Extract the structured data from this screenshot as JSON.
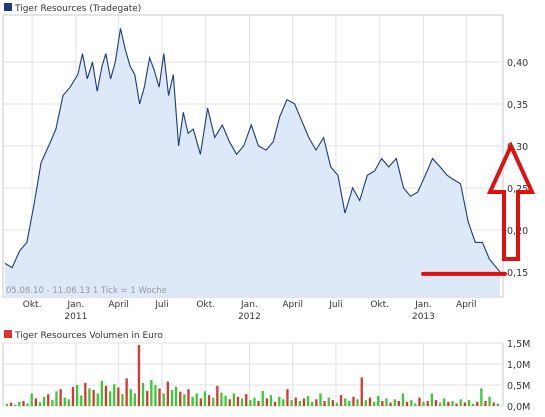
{
  "chart_data": [
    {
      "type": "area",
      "title": "Tiger Resources (Tradegate)",
      "subtitle": "05.08.10 - 11.06.13   1 Tick = 1 Woche",
      "xlabel": "",
      "ylabel": "",
      "ylim": [
        0.12,
        0.45
      ],
      "y_ticks": [
        0.15,
        0.2,
        0.25,
        0.3,
        0.35,
        0.4
      ],
      "y_tick_labels": [
        "0,15",
        "0,20",
        "0,25",
        "0,30",
        "0,35",
        "0,40"
      ],
      "x_ticks": [
        {
          "label": "Okt.",
          "year": ""
        },
        {
          "label": "Jan.",
          "year": "2011"
        },
        {
          "label": "April",
          "year": ""
        },
        {
          "label": "Juli",
          "year": ""
        },
        {
          "label": "Okt.",
          "year": ""
        },
        {
          "label": "Jan.",
          "year": "2012"
        },
        {
          "label": "April",
          "year": ""
        },
        {
          "label": "Juli",
          "year": ""
        },
        {
          "label": "Okt.",
          "year": ""
        },
        {
          "label": "Jan.",
          "year": "2013"
        },
        {
          "label": "April",
          "year": ""
        }
      ],
      "x_tick_dates": [
        "2010-10-01",
        "2011-01-01",
        "2011-04-01",
        "2011-07-01",
        "2011-10-01",
        "2012-01-01",
        "2012-04-01",
        "2012-07-01",
        "2012-10-01",
        "2013-01-01",
        "2013-04-01"
      ],
      "x_range": [
        "2010-08-05",
        "2013-06-11"
      ],
      "grid": true,
      "legend": "top-left",
      "series": [
        {
          "name": "Tiger Resources (Tradegate)",
          "color": "#1a3a7a",
          "fill": "#dde8f8",
          "x": [
            "2010-08-05",
            "2010-08-20",
            "2010-09-05",
            "2010-09-20",
            "2010-10-05",
            "2010-10-20",
            "2010-11-05",
            "2010-11-20",
            "2010-12-05",
            "2010-12-20",
            "2011-01-05",
            "2011-01-15",
            "2011-01-25",
            "2011-02-05",
            "2011-02-15",
            "2011-02-25",
            "2011-03-05",
            "2011-03-15",
            "2011-03-25",
            "2011-04-05",
            "2011-04-15",
            "2011-04-25",
            "2011-05-05",
            "2011-05-15",
            "2011-05-25",
            "2011-06-05",
            "2011-06-15",
            "2011-06-25",
            "2011-07-05",
            "2011-07-15",
            "2011-07-25",
            "2011-08-05",
            "2011-08-15",
            "2011-08-25",
            "2011-09-05",
            "2011-09-20",
            "2011-10-05",
            "2011-10-20",
            "2011-11-05",
            "2011-11-20",
            "2011-12-05",
            "2011-12-20",
            "2012-01-05",
            "2012-01-20",
            "2012-02-05",
            "2012-02-20",
            "2012-03-05",
            "2012-03-20",
            "2012-04-05",
            "2012-04-20",
            "2012-05-05",
            "2012-05-20",
            "2012-06-05",
            "2012-06-20",
            "2012-07-05",
            "2012-07-20",
            "2012-08-05",
            "2012-08-20",
            "2012-09-05",
            "2012-09-20",
            "2012-10-05",
            "2012-10-20",
            "2012-11-05",
            "2012-11-20",
            "2012-12-05",
            "2012-12-20",
            "2013-01-05",
            "2013-01-20",
            "2013-02-05",
            "2013-02-20",
            "2013-03-05",
            "2013-03-20",
            "2013-04-05",
            "2013-04-20",
            "2013-05-05",
            "2013-05-20",
            "2013-06-11"
          ],
          "values": [
            0.16,
            0.155,
            0.175,
            0.185,
            0.23,
            0.28,
            0.3,
            0.32,
            0.36,
            0.37,
            0.385,
            0.41,
            0.38,
            0.4,
            0.365,
            0.395,
            0.41,
            0.38,
            0.4,
            0.44,
            0.415,
            0.395,
            0.385,
            0.35,
            0.37,
            0.405,
            0.39,
            0.37,
            0.41,
            0.36,
            0.385,
            0.3,
            0.34,
            0.315,
            0.32,
            0.29,
            0.345,
            0.31,
            0.325,
            0.305,
            0.29,
            0.3,
            0.325,
            0.3,
            0.295,
            0.305,
            0.335,
            0.355,
            0.35,
            0.33,
            0.31,
            0.295,
            0.31,
            0.275,
            0.265,
            0.22,
            0.25,
            0.235,
            0.265,
            0.27,
            0.285,
            0.275,
            0.285,
            0.25,
            0.24,
            0.245,
            0.265,
            0.285,
            0.275,
            0.265,
            0.26,
            0.255,
            0.21,
            0.185,
            0.185,
            0.165,
            0.15
          ]
        }
      ],
      "annotations": [
        {
          "type": "arrow-up",
          "color": "#e01010",
          "description": "red hollow arrow pointing up"
        },
        {
          "type": "hline",
          "color": "#e01010",
          "value": 0.15
        }
      ]
    },
    {
      "type": "bar",
      "title": "Tiger Resources Volumen in Euro",
      "ylim": [
        0,
        1.5
      ],
      "y_ticks": [
        0,
        0.5,
        1.0,
        1.5
      ],
      "y_tick_labels": [
        "0,0M",
        "0,5M",
        "1,0M",
        "1,5M"
      ],
      "grid": true,
      "legend": "top-left",
      "series": [
        {
          "name": "Tiger Resources Volumen in Euro",
          "colors": {
            "up": "#33cc33",
            "down": "#dd3333"
          },
          "values": [
            0.05,
            0.08,
            0.03,
            0.1,
            0.12,
            0.06,
            0.3,
            0.18,
            0.09,
            0.22,
            0.28,
            0.14,
            0.35,
            0.4,
            0.2,
            0.16,
            0.45,
            0.5,
            0.25,
            0.55,
            0.42,
            0.38,
            0.3,
            0.6,
            0.48,
            0.35,
            0.52,
            0.44,
            0.28,
            0.66,
            0.4,
            0.3,
            1.45,
            0.55,
            0.36,
            0.62,
            0.5,
            0.42,
            0.3,
            0.58,
            0.38,
            0.46,
            0.34,
            0.28,
            0.4,
            0.22,
            0.3,
            0.18,
            0.35,
            0.26,
            0.2,
            0.48,
            0.32,
            0.24,
            0.16,
            0.3,
            0.22,
            0.18,
            0.28,
            0.14,
            0.2,
            0.12,
            0.36,
            0.18,
            0.26,
            0.1,
            0.22,
            0.16,
            0.4,
            0.14,
            0.2,
            0.12,
            0.18,
            0.24,
            0.1,
            0.16,
            0.3,
            0.12,
            0.2,
            0.14,
            0.08,
            0.26,
            0.18,
            0.12,
            0.22,
            0.16,
            0.68,
            0.14,
            0.2,
            0.1,
            0.24,
            0.12,
            0.18,
            0.08,
            0.16,
            0.12,
            0.3,
            0.1,
            0.14,
            0.06,
            0.2,
            0.1,
            0.12,
            0.3,
            0.14,
            0.08,
            0.18,
            0.1,
            0.12,
            0.06,
            0.16,
            0.08,
            0.14,
            0.05,
            0.1,
            0.42,
            0.12,
            0.22,
            0.08,
            0.06
          ],
          "directions": [
            1,
            0,
            1,
            1,
            0,
            1,
            1,
            0,
            1,
            1,
            0,
            1,
            1,
            0,
            1,
            1,
            0,
            1,
            1,
            0,
            1,
            0,
            1,
            1,
            0,
            1,
            1,
            0,
            1,
            0,
            1,
            1,
            0,
            1,
            0,
            1,
            1,
            0,
            1,
            0,
            1,
            1,
            0,
            1,
            0,
            1,
            1,
            0,
            1,
            0,
            1,
            0,
            1,
            1,
            0,
            1,
            0,
            1,
            0,
            1,
            1,
            0,
            1,
            0,
            1,
            0,
            1,
            1,
            0,
            1,
            0,
            1,
            0,
            1,
            1,
            0,
            1,
            0,
            1,
            0,
            1,
            0,
            1,
            1,
            0,
            1,
            0,
            1,
            0,
            1,
            1,
            0,
            1,
            0,
            1,
            0,
            1,
            0,
            1,
            1,
            0,
            1,
            0,
            1,
            0,
            1,
            1,
            0,
            1,
            0,
            1,
            0,
            1,
            1,
            0,
            1,
            0,
            1,
            0,
            1
          ]
        }
      ]
    }
  ]
}
